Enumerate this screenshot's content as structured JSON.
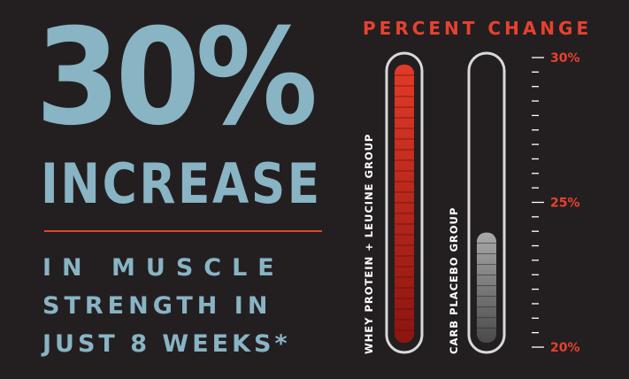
{
  "headline": {
    "value": "30%",
    "word": "INCREASE",
    "lines": [
      "IN MUSCLE",
      "STRENGTH IN",
      "JUST 8 WEEKS*"
    ]
  },
  "colors": {
    "background": "#231f20",
    "headline": "#88b4c4",
    "accent": "#e8412f",
    "tube_outline": "#d9d9d9",
    "whey_fill_top": "#e23a28",
    "whey_fill_bottom": "#8b1510",
    "carb_fill_top": "#a9a9a9",
    "carb_fill_bottom": "#4a4a4a"
  },
  "chart_data": {
    "type": "bar",
    "title": "PERCENT CHANGE",
    "categories": [
      "WHEY PROTEIN + LEUCINE GROUP",
      "CARB PLACEBO GROUP"
    ],
    "values": [
      30,
      24.2
    ],
    "ylim": [
      20,
      30
    ],
    "y_tick_labels": [
      "30%",
      "25%",
      "20%"
    ],
    "y_tick_values": [
      30,
      25,
      20
    ],
    "minor_tick_step": 0.5,
    "grid": false,
    "legend": "none"
  }
}
